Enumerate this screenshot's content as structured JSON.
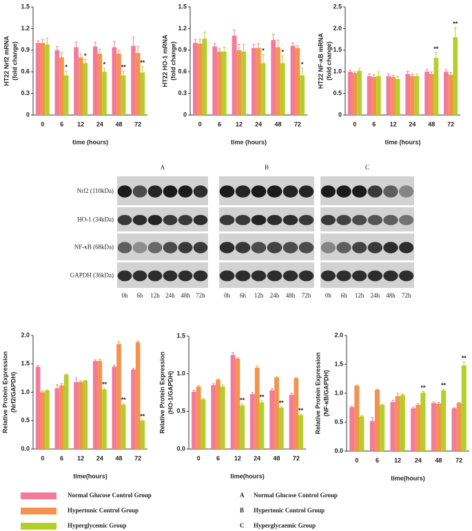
{
  "chart_data": [
    {
      "type": "bar",
      "ylabel": [
        "HT22 Nrf2 mRNA",
        "(fold change)"
      ],
      "xlabel": "time (hours)",
      "categories": [
        "0",
        "6",
        "12",
        "24",
        "48",
        "72"
      ],
      "ylim": [
        0,
        1.5
      ],
      "yticks": [
        0,
        0.3,
        0.6,
        0.9,
        1.2,
        1.5
      ],
      "series": [
        {
          "name": "Normal Glucose Control Group",
          "color": "#f47a9a",
          "values": [
            1.0,
            0.9,
            0.94,
            0.95,
            0.94,
            0.96
          ],
          "errors": [
            0.03,
            0.05,
            0.07,
            0.06,
            0.08,
            0.12
          ],
          "annotations": [
            null,
            null,
            null,
            null,
            null,
            null
          ]
        },
        {
          "name": "Hypertonic Control Group",
          "color": "#f4934d",
          "values": [
            1.0,
            0.8,
            0.8,
            0.85,
            0.85,
            0.86
          ],
          "errors": [
            0.05,
            0.07,
            0.05,
            0.06,
            0.05,
            0.09
          ],
          "annotations": [
            null,
            null,
            null,
            null,
            null,
            null
          ]
        },
        {
          "name": "Hyperglycemic Group",
          "color": "#b5cf2a",
          "values": [
            0.98,
            0.55,
            0.72,
            0.6,
            0.55,
            0.59
          ],
          "errors": [
            0.09,
            0.06,
            0.05,
            0.05,
            0.06,
            0.08
          ],
          "annotations": [
            null,
            "*",
            "*",
            "*",
            "**",
            "**"
          ]
        }
      ]
    },
    {
      "type": "bar",
      "ylabel": [
        "HT22 HO-1 mRNA",
        "(fold change)"
      ],
      "xlabel": "time (hours)",
      "categories": [
        "0",
        "6",
        "12",
        "24",
        "48",
        "72"
      ],
      "ylim": [
        0,
        1.5
      ],
      "yticks": [
        0,
        0.3,
        0.6,
        0.9,
        1.2,
        1.5
      ],
      "series": [
        {
          "name": "Normal Glucose Control Group",
          "color": "#f47a9a",
          "values": [
            1.0,
            0.95,
            1.1,
            0.93,
            1.04,
            0.96
          ],
          "errors": [
            0.05,
            0.04,
            0.08,
            0.05,
            0.08,
            0.04
          ],
          "annotations": [
            null,
            null,
            null,
            null,
            null,
            null
          ]
        },
        {
          "name": "Hypertonic Control Group",
          "color": "#f4934d",
          "values": [
            0.99,
            0.88,
            0.9,
            0.93,
            0.94,
            0.93
          ],
          "errors": [
            0.06,
            0.04,
            0.08,
            0.06,
            0.1,
            0.03
          ],
          "annotations": [
            null,
            null,
            null,
            null,
            null,
            null
          ]
        },
        {
          "name": "Hyperglycemic Group",
          "color": "#b5cf2a",
          "values": [
            1.06,
            0.88,
            0.88,
            0.72,
            0.72,
            0.55
          ],
          "errors": [
            0.09,
            0.06,
            0.1,
            0.12,
            0.1,
            0.1
          ],
          "annotations": [
            null,
            null,
            null,
            "*",
            "*",
            "*"
          ]
        }
      ]
    },
    {
      "type": "bar",
      "ylabel": [
        "HT22 NF-κB mRNA",
        "(fold change)"
      ],
      "xlabel": "time (hours)",
      "categories": [
        "0",
        "6",
        "12",
        "24",
        "48",
        "72"
      ],
      "ylim": [
        0,
        2.5
      ],
      "yticks": [
        0,
        0.5,
        {
          "value": 1,
          "label": "1.0"
        },
        1.5,
        {
          "value": 2,
          "label": "2.0"
        },
        2.5
      ],
      "series": [
        {
          "name": "Normal Glucose Control Group",
          "color": "#f47a9a",
          "values": [
            1.0,
            0.9,
            0.9,
            0.95,
            1.0,
            1.0
          ],
          "errors": [
            0.04,
            0.05,
            0.05,
            0.06,
            0.05,
            0.05
          ],
          "annotations": [
            null,
            null,
            null,
            null,
            null,
            null
          ]
        },
        {
          "name": "Hypertonic Control Group",
          "color": "#f4934d",
          "values": [
            0.97,
            0.88,
            0.88,
            0.9,
            0.95,
            0.93
          ],
          "errors": [
            0.03,
            0.05,
            0.04,
            0.05,
            0.05,
            0.05
          ],
          "annotations": [
            null,
            null,
            null,
            null,
            null,
            null
          ]
        },
        {
          "name": "Hyperglycemic Group",
          "color": "#b5cf2a",
          "values": [
            1.02,
            0.9,
            0.83,
            0.9,
            1.32,
            1.8
          ],
          "errors": [
            0.05,
            0.1,
            0.06,
            0.05,
            0.12,
            0.22
          ],
          "annotations": [
            null,
            null,
            null,
            null,
            "**",
            "**"
          ]
        }
      ]
    },
    {
      "type": "bar",
      "ylabel": [
        "Relative Protein Expression",
        "(Nrf2/GAPDH)"
      ],
      "xlabel": "time(hours)",
      "categories": [
        "0",
        "6",
        "12",
        "24",
        "48",
        "72"
      ],
      "ylim": [
        0,
        2
      ],
      "yticks": [
        {
          "value": 0,
          "label": "0.0"
        },
        0.5,
        {
          "value": 1,
          "label": "1.0"
        },
        1.5,
        {
          "value": 2,
          "label": "2.0"
        }
      ],
      "series": [
        {
          "name": "Normal Glucose Control Group",
          "color": "#f47a9a",
          "values": [
            1.45,
            1.07,
            1.18,
            1.55,
            1.45,
            1.4
          ],
          "errors": [
            0.02,
            0.06,
            0.07,
            0.02,
            0.02,
            0.02
          ],
          "annotations": [
            null,
            null,
            null,
            null,
            null,
            null
          ]
        },
        {
          "name": "Hypertonic Control Group",
          "color": "#f4934d",
          "values": [
            1.0,
            1.12,
            1.18,
            1.55,
            1.85,
            1.88
          ],
          "errors": [
            0.02,
            0.03,
            0.02,
            0.03,
            0.04,
            0.02
          ],
          "annotations": [
            null,
            null,
            null,
            null,
            null,
            null
          ]
        },
        {
          "name": "Hyperglycemic Group",
          "color": "#b5cf2a",
          "values": [
            1.03,
            1.31,
            1.2,
            1.05,
            0.78,
            0.5
          ],
          "errors": [
            0.01,
            0.01,
            0.01,
            0.02,
            0.02,
            0.01
          ],
          "annotations": [
            null,
            null,
            null,
            "**",
            "**",
            "**"
          ]
        }
      ]
    },
    {
      "type": "bar",
      "ylabel": [
        "Relative Protein Expression",
        "(HO-1/GAPDH)"
      ],
      "xlabel": "time(hours)",
      "categories": [
        "0",
        "6",
        "12",
        "24",
        "48",
        "72"
      ],
      "ylim": [
        0,
        1.5
      ],
      "yticks": [
        {
          "value": 0,
          "label": "0.0"
        },
        0.5,
        {
          "value": 1,
          "label": "1.0"
        },
        1.5
      ],
      "series": [
        {
          "name": "Normal Glucose Control Group",
          "color": "#f47a9a",
          "values": [
            0.76,
            0.85,
            1.25,
            0.73,
            0.78,
            0.72
          ],
          "errors": [
            0.02,
            0.02,
            0.03,
            0.02,
            0.02,
            0.02
          ],
          "annotations": [
            null,
            null,
            null,
            null,
            null,
            null
          ]
        },
        {
          "name": "Hypertonic Control Group",
          "color": "#f4934d",
          "values": [
            0.83,
            0.92,
            1.2,
            1.08,
            0.95,
            0.94
          ],
          "errors": [
            0.01,
            0.01,
            0.01,
            0.02,
            0.01,
            0.01
          ],
          "annotations": [
            null,
            null,
            null,
            null,
            null,
            null
          ]
        },
        {
          "name": "Hyperglycemic Group",
          "color": "#b5cf2a",
          "values": [
            0.66,
            0.83,
            0.58,
            0.62,
            0.55,
            0.45
          ],
          "errors": [
            0.01,
            0.02,
            0.02,
            0.02,
            0.01,
            0.01
          ],
          "annotations": [
            null,
            null,
            "**",
            "**",
            "**",
            "**"
          ]
        }
      ]
    },
    {
      "type": "bar",
      "ylabel": [
        "Relative Protein Expression",
        "(NF-κB/GAPDH)"
      ],
      "xlabel": "time(hours)",
      "categories": [
        "0",
        "6",
        "12",
        "24",
        "48",
        "72"
      ],
      "ylim": [
        0,
        2
      ],
      "yticks": [
        {
          "value": 0,
          "label": "0.0"
        },
        0.5,
        {
          "value": 1,
          "label": "1.0"
        },
        1.5,
        {
          "value": 2,
          "label": "2.0"
        }
      ],
      "series": [
        {
          "name": "Normal Glucose Control Group",
          "color": "#f47a9a",
          "values": [
            0.76,
            0.52,
            0.85,
            0.74,
            0.83,
            0.74
          ],
          "errors": [
            0.02,
            0.06,
            0.03,
            0.02,
            0.02,
            0.01
          ],
          "annotations": [
            null,
            null,
            null,
            null,
            null,
            null
          ]
        },
        {
          "name": "Hypertonic Control Group",
          "color": "#f4934d",
          "values": [
            1.13,
            1.06,
            0.95,
            0.8,
            0.82,
            0.83
          ],
          "errors": [
            0.01,
            0.01,
            0.05,
            0.02,
            0.02,
            0.01
          ],
          "annotations": [
            null,
            null,
            null,
            null,
            null,
            null
          ]
        },
        {
          "name": "Hyperglycemic Group",
          "color": "#b5cf2a",
          "values": [
            0.6,
            0.8,
            0.97,
            1.01,
            1.05,
            1.48
          ],
          "errors": [
            0.01,
            0.01,
            0.02,
            0.02,
            0.02,
            0.06
          ],
          "annotations": [
            null,
            null,
            null,
            "**",
            "**",
            "**"
          ]
        }
      ]
    }
  ],
  "blots": {
    "panels": [
      "A",
      "B",
      "C"
    ],
    "rows": [
      "Nrf2 (110kDa)",
      "HO-1 (34kDa)",
      "NF-κB (68kDa)",
      "GAPDH (36kDa)"
    ],
    "lanes": [
      "0h",
      "6h",
      "12h",
      "24h",
      "48h",
      "72h"
    ]
  },
  "blot_legend": [
    {
      "letter": "A",
      "text": "Normal Glucose Control Group"
    },
    {
      "letter": "B",
      "text": "Hypertonic Control Group"
    },
    {
      "letter": "C",
      "text": "Hyperglycaemic Group"
    }
  ]
}
